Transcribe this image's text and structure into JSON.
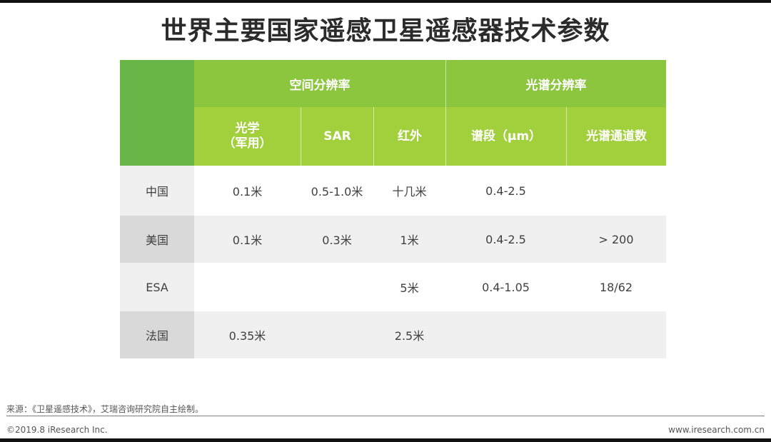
{
  "title": "世界主要国家遥感卫星遥感器技术参数",
  "table": {
    "groups": [
      {
        "label": "空间分辨率"
      },
      {
        "label": "光谱分辨率"
      }
    ],
    "columns": [
      {
        "label": "光学\n（军用）"
      },
      {
        "label": "SAR"
      },
      {
        "label": "红外"
      },
      {
        "label": "谱段（μm）"
      },
      {
        "label": "光谱通道数"
      }
    ],
    "rows": [
      {
        "name": "中国",
        "cells": [
          "0.1米",
          "0.5-1.0米",
          "十几米",
          "0.4-2.5",
          ""
        ]
      },
      {
        "name": "美国",
        "cells": [
          "0.1米",
          "0.3米",
          "1米",
          "0.4-2.5",
          "> 200"
        ]
      },
      {
        "name": "ESA",
        "cells": [
          "",
          "",
          "5米",
          "0.4-1.05",
          "18/62"
        ]
      },
      {
        "name": "法国",
        "cells": [
          "0.35米",
          "",
          "2.5米",
          "",
          ""
        ]
      }
    ]
  },
  "footer": {
    "source": "来源：《卫星遥感技术》，艾瑞咨询研究院自主绘制。",
    "copyright": "©2019.8 iResearch Inc.",
    "website": "www.iresearch.com.cn"
  }
}
